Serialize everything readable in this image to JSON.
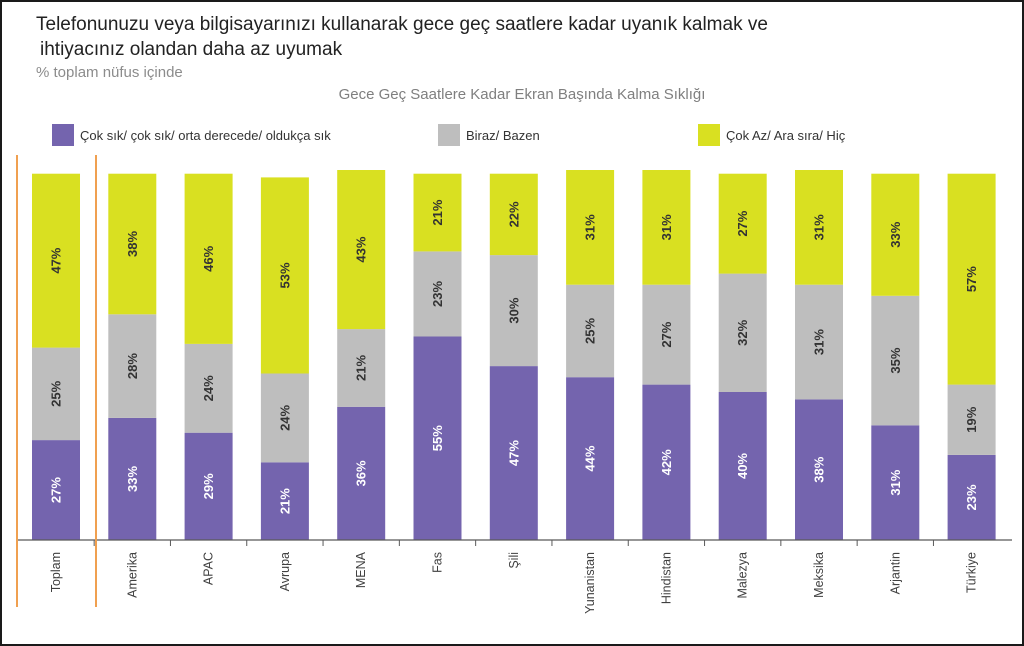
{
  "header": {
    "title_line1": "Telefonunuzu veya bilgisayarınızı kullanarak gece geç saatlere kadar uyanık kalmak ve",
    "title_line2": "ihtiyacınız olandan daha az uyumak",
    "subtitle": "% toplam nüfus içinde"
  },
  "colors": {
    "purple": "#7464ae",
    "gray": "#bebebe",
    "yellow": "#d9e021",
    "divider": "#f0a050",
    "axis": "#595959",
    "label_dark": "#333333",
    "label_light": "#ffffff"
  },
  "legend": [
    {
      "label": "Çok sık/ çok sık/ orta derecede/ oldukça sık",
      "color": "#7464ae"
    },
    {
      "label": "Biraz/ Bazen",
      "color": "#bebebe"
    },
    {
      "label": "Çok Az/ Ara sıra/ Hiç",
      "color": "#d9e021"
    }
  ],
  "chart_data": {
    "type": "bar",
    "stacked": true,
    "title": "Gece Geç Saatlere Kadar Ekran Başında Kalma Sıklığı",
    "categories": [
      "Toplam",
      "Amerika",
      "APAC",
      "Avrupa",
      "MENA",
      "Fas",
      "Şili",
      "Yunanistan",
      "Hindistan",
      "Malezya",
      "Meksika",
      "Arjantin",
      "Türkiye"
    ],
    "series": [
      {
        "name": "Çok sık/ çok sık/ orta derecede/ oldukça sık",
        "values": [
          27,
          33,
          29,
          21,
          36,
          55,
          47,
          44,
          42,
          40,
          38,
          31,
          23
        ]
      },
      {
        "name": "Biraz/ Bazen",
        "values": [
          25,
          28,
          24,
          24,
          21,
          23,
          30,
          25,
          27,
          32,
          31,
          35,
          19
        ]
      },
      {
        "name": "Çok Az/ Ara sıra/ Hiç",
        "values": [
          47,
          38,
          46,
          53,
          43,
          21,
          22,
          31,
          31,
          27,
          31,
          33,
          57
        ]
      }
    ],
    "value_suffix": "%",
    "xlabel": "",
    "ylabel": "",
    "ylim": [
      0,
      100
    ],
    "grid": false,
    "legend_position": "top"
  }
}
